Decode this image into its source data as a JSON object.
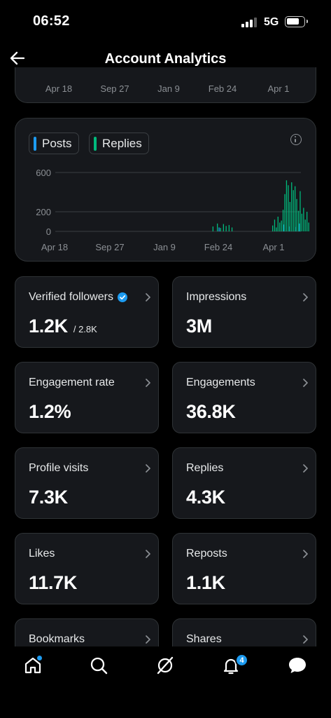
{
  "status_bar": {
    "time": "06:52",
    "network": "5G"
  },
  "header": {
    "title": "Account Analytics",
    "back_icon": "arrow-left-icon"
  },
  "range_strip": {
    "ticks": [
      "Apr 18",
      "Sep 27",
      "Jan 9",
      "Feb 24",
      "Apr 1"
    ]
  },
  "chart": {
    "legend": [
      {
        "label": "Posts",
        "color": "#1d9bf0"
      },
      {
        "label": "Replies",
        "color": "#00ba7c"
      }
    ],
    "info_icon": "info-icon"
  },
  "chart_data": {
    "type": "bar",
    "x_tick_labels": [
      "Apr 18",
      "Sep 27",
      "Jan 9",
      "Feb 24",
      "Apr 1"
    ],
    "y_ticks": [
      0,
      200,
      600
    ],
    "ylim": [
      0,
      650
    ],
    "grid": true,
    "legend_placement": "top-left",
    "series": [
      {
        "name": "Posts",
        "color": "#1d9bf0",
        "values": [
          [
            0.665,
            40
          ],
          [
            0.93,
            70
          ],
          [
            0.955,
            50
          ],
          [
            0.978,
            45
          ],
          [
            0.995,
            80
          ]
        ]
      },
      {
        "name": "Replies",
        "color": "#00ba7c",
        "values": [
          [
            0.64,
            50
          ],
          [
            0.658,
            80
          ],
          [
            0.671,
            35
          ],
          [
            0.683,
            75
          ],
          [
            0.694,
            55
          ],
          [
            0.706,
            65
          ],
          [
            0.718,
            40
          ],
          [
            0.885,
            60
          ],
          [
            0.893,
            120
          ],
          [
            0.9,
            40
          ],
          [
            0.907,
            150
          ],
          [
            0.914,
            90
          ],
          [
            0.921,
            110
          ],
          [
            0.928,
            220
          ],
          [
            0.935,
            380
          ],
          [
            0.942,
            520
          ],
          [
            0.949,
            470
          ],
          [
            0.956,
            300
          ],
          [
            0.963,
            500
          ],
          [
            0.97,
            420
          ],
          [
            0.977,
            460
          ],
          [
            0.984,
            330
          ],
          [
            0.991,
            210
          ],
          [
            0.998,
            410
          ],
          [
            1.005,
            180
          ],
          [
            1.012,
            240
          ],
          [
            1.019,
            120
          ],
          [
            1.026,
            200
          ],
          [
            1.033,
            90
          ]
        ]
      }
    ]
  },
  "metrics": [
    {
      "label": "Verified followers",
      "value": "1.2K",
      "sub": "/ 2.8K",
      "verified": true
    },
    {
      "label": "Impressions",
      "value": "3M"
    },
    {
      "label": "Engagement rate",
      "value": "1.2%"
    },
    {
      "label": "Engagements",
      "value": "36.8K"
    },
    {
      "label": "Profile visits",
      "value": "7.3K"
    },
    {
      "label": "Replies",
      "value": "4.3K"
    },
    {
      "label": "Likes",
      "value": "11.7K"
    },
    {
      "label": "Reposts",
      "value": "1.1K"
    },
    {
      "label": "Bookmarks",
      "value": ""
    },
    {
      "label": "Shares",
      "value": ""
    }
  ],
  "tabbar": {
    "items": [
      "home-icon",
      "search-icon",
      "grok-icon",
      "notifications-icon",
      "messages-icon"
    ],
    "notifications_badge": "4",
    "accent": "#1d9bf0"
  }
}
